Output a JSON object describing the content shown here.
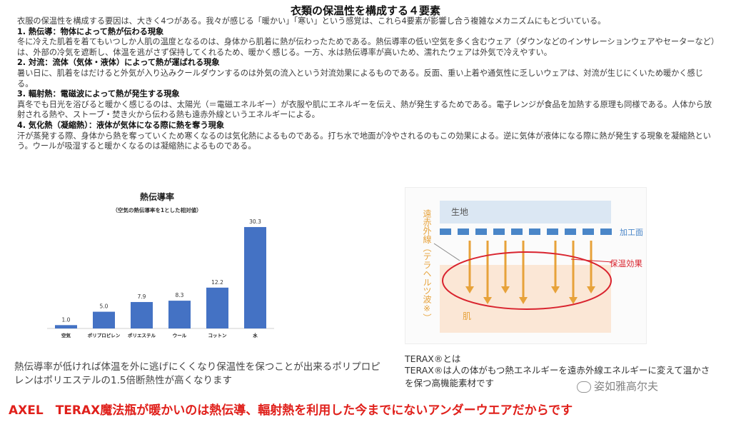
{
  "title": "衣類の保温性を構成する４要素",
  "intro": "衣服の保温性を構成する要因は、大きく4つがある。我々が感じる「暖かい」「寒い」という感覚は、これら4要素が影響し合う複雑なメカニズムにもとづいている。",
  "sections": [
    {
      "heading": "1. 熱伝導：物体によって熱が伝わる現象",
      "body": "冬に冷えた肌着を着てもいつしか人肌の温度となるのは、身体から肌着に熱が伝わったためである。熱伝導率の低い空気を多く含むウェア（ダウンなどのインサレーションウェアやセーターなど）は、外部の冷気を遮断し、体温を逃がさず保持してくれるため、暖かく感じる。一方、水は熱伝導率が高いため、濡れたウェアは外気で冷えやすい。"
    },
    {
      "heading": "2. 対流：流体（気体・液体）によって熱が運ばれる現象",
      "body": "暑い日に、肌着をはだけると外気が入り込みクールダウンするのは外気の流入という対流効果によるものである。反面、重い上着や通気性に乏しいウェアは、対流が生じにくいため暖かく感じる。"
    },
    {
      "heading": "3. 輻射熱：電磁波によって熱が発生する現象",
      "body": "真冬でも日光を浴びると暖かく感じるのは、太陽光（＝電磁エネルギー）が衣服や肌にエネルギーを伝え、熱が発生するためである。電子レンジが食品を加熱する原理も同様である。人体から放射される熱や、ストーブ・焚き火から伝わる熱も遠赤外線というエネルギーによる。"
    },
    {
      "heading": "4. 気化熱（凝縮熱）：液体が気体になる際に熱を奪う現象",
      "body": "汗が蒸発する際、身体から熱を奪っていくため寒くなるのは気化熱によるものである。打ち水で地面が冷やされるのもこの効果による。逆に気体が液体になる際に熱が発生する現象を凝縮熱という。ウールが吸湿すると暖かくなるのは凝縮熱によるものである。"
    }
  ],
  "chart_data": {
    "type": "bar",
    "title": "熱伝導率",
    "subtitle": "（空気の熱伝導率を1とした相対値）",
    "categories": [
      "空気",
      "ポリプロピレン",
      "ポリエステル",
      "ウール",
      "コットン",
      "水"
    ],
    "values": [
      1.0,
      5.0,
      7.9,
      8.3,
      12.2,
      30.3
    ],
    "value_labels": [
      "1.0",
      "5.0",
      "7.9",
      "8.3",
      "12.2",
      "30.3"
    ],
    "ylim": [
      0,
      32
    ],
    "grid": false,
    "color": "#4472c4"
  },
  "caption_left": "熱伝導率が低ければ体温を外に逃げにくくなり保温性を保つことが出来るポリプロピレンはポリエステルの1.5倍断熱性が高くなります",
  "diagram": {
    "fabric_label": "生地",
    "processed_label": "加工面",
    "effect_label": "保温効果",
    "skin_label": "肌",
    "side_label": "遠赤外線（テラヘルツ波※）"
  },
  "terax": {
    "title": "TERAX®とは",
    "desc": "TERAX®は人の体がもつ熱エネルギーを遠赤外線エネルギーに変えて温かさを保つ高機能素材です"
  },
  "watermark": "姿如雅高尔夫",
  "bottom_banner": "AXEL　TERAX魔法瓶が暖かいのは熱伝導、輻射熱を利用した今までにないアンダーウエアだからです",
  "colors": {
    "accent_red": "#e0201b",
    "bar_blue": "#4472c4",
    "arrow_gold": "#e7a23a",
    "fabric_blue": "#dbe7f3",
    "processed_blue": "#4a86c8",
    "skin_peach": "#fbe7d6"
  }
}
